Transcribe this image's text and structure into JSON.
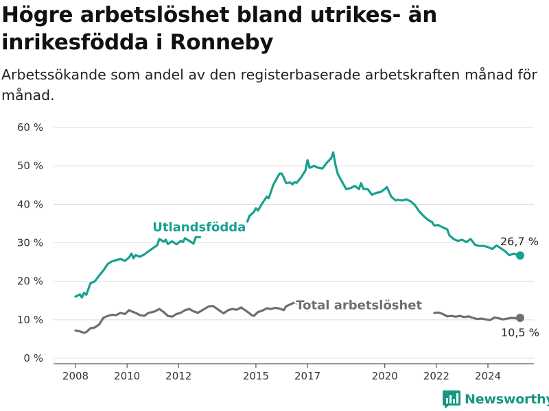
{
  "header": {
    "title": "Högre arbetslöshet bland utrikes- än inrikesfödda i Ronneby",
    "subtitle": "Arbetssökande som andel av den registerbaserade arbetskraften månad för månad."
  },
  "brand": {
    "name": "Newsworthy",
    "color": "#16977f"
  },
  "chart_data": {
    "type": "line",
    "title": "Högre arbetslöshet bland utrikes- än inrikesfödda i Ronneby",
    "subtitle": "Arbetssökande som andel av den registerbaserade arbetskraften månad för månad.",
    "xlabel": "",
    "ylabel": "",
    "x_range": [
      2007.75,
      2025.5
    ],
    "ylim": [
      0,
      60
    ],
    "y_ticks": [
      0,
      10,
      20,
      30,
      40,
      50,
      60
    ],
    "y_tick_labels": [
      "0 %",
      "10 %",
      "20 %",
      "30 %",
      "40 %",
      "50 %",
      "60 %"
    ],
    "x_ticks": [
      2008,
      2010,
      2012,
      2015,
      2017,
      2020,
      2022,
      2024
    ],
    "x_tick_labels": [
      "2008",
      "2010",
      "2012",
      "2015",
      "2017",
      "2020",
      "2022",
      "2024"
    ],
    "grid": "horizontal",
    "legend": "direct-labels",
    "series": [
      {
        "name": "Utlandsfödda",
        "color": "#17a08f",
        "end_label": "26,7 %",
        "points": [
          [
            2008.0,
            16.0
          ],
          [
            2008.17,
            16.6
          ],
          [
            2008.25,
            15.8
          ],
          [
            2008.33,
            17.0
          ],
          [
            2008.42,
            16.5
          ],
          [
            2008.58,
            19.5
          ],
          [
            2008.75,
            20.0
          ],
          [
            2008.92,
            21.5
          ],
          [
            2009.08,
            22.8
          ],
          [
            2009.25,
            24.5
          ],
          [
            2009.42,
            25.2
          ],
          [
            2009.58,
            25.5
          ],
          [
            2009.75,
            25.8
          ],
          [
            2009.92,
            25.3
          ],
          [
            2010.08,
            26.2
          ],
          [
            2010.17,
            27.2
          ],
          [
            2010.25,
            26.0
          ],
          [
            2010.33,
            26.8
          ],
          [
            2010.5,
            26.4
          ],
          [
            2010.67,
            27.0
          ],
          [
            2010.83,
            27.8
          ],
          [
            2011.0,
            28.6
          ],
          [
            2011.17,
            29.4
          ],
          [
            2011.25,
            31.0
          ],
          [
            2011.42,
            30.3
          ],
          [
            2011.5,
            30.8
          ],
          [
            2011.58,
            29.7
          ],
          [
            2011.75,
            30.4
          ],
          [
            2011.92,
            29.6
          ],
          [
            2012.08,
            30.5
          ],
          [
            2012.17,
            30.2
          ],
          [
            2012.25,
            31.2
          ],
          [
            2012.42,
            30.5
          ],
          [
            2012.58,
            29.8
          ],
          [
            2012.67,
            31.5
          ],
          [
            2012.83,
            31.5
          ]
        ],
        "points_2": [
          [
            2014.67,
            35.5
          ],
          [
            2014.75,
            37.0
          ],
          [
            2014.92,
            38.0
          ],
          [
            2015.0,
            39.0
          ],
          [
            2015.08,
            38.4
          ],
          [
            2015.25,
            40.3
          ],
          [
            2015.42,
            42.0
          ],
          [
            2015.5,
            41.6
          ],
          [
            2015.67,
            45.0
          ],
          [
            2015.83,
            47.0
          ],
          [
            2015.92,
            48.0
          ],
          [
            2016.0,
            48.0
          ],
          [
            2016.08,
            47.0
          ],
          [
            2016.17,
            45.5
          ],
          [
            2016.33,
            45.7
          ],
          [
            2016.42,
            45.2
          ],
          [
            2016.5,
            45.8
          ],
          [
            2016.58,
            45.6
          ],
          [
            2016.75,
            47.0
          ],
          [
            2016.92,
            48.8
          ],
          [
            2017.0,
            51.5
          ],
          [
            2017.08,
            49.5
          ],
          [
            2017.25,
            50.0
          ],
          [
            2017.42,
            49.5
          ],
          [
            2017.58,
            49.3
          ],
          [
            2017.75,
            50.8
          ],
          [
            2017.92,
            52.0
          ],
          [
            2018.0,
            53.5
          ],
          [
            2018.08,
            50.5
          ],
          [
            2018.17,
            48.0
          ],
          [
            2018.33,
            46.0
          ],
          [
            2018.5,
            44.0
          ],
          [
            2018.67,
            44.2
          ],
          [
            2018.83,
            44.8
          ],
          [
            2019.0,
            44.0
          ],
          [
            2019.08,
            45.5
          ],
          [
            2019.17,
            44.0
          ],
          [
            2019.33,
            44.0
          ],
          [
            2019.5,
            42.5
          ],
          [
            2019.67,
            43.0
          ],
          [
            2019.83,
            43.2
          ],
          [
            2020.0,
            44.0
          ],
          [
            2020.08,
            44.5
          ],
          [
            2020.25,
            42.0
          ],
          [
            2020.42,
            41.0
          ],
          [
            2020.5,
            41.2
          ],
          [
            2020.67,
            41.0
          ],
          [
            2020.83,
            41.3
          ],
          [
            2021.0,
            40.8
          ],
          [
            2021.17,
            39.8
          ],
          [
            2021.33,
            38.2
          ],
          [
            2021.5,
            37.0
          ],
          [
            2021.67,
            36.0
          ],
          [
            2021.83,
            35.4
          ],
          [
            2021.92,
            34.5
          ],
          [
            2022.08,
            34.6
          ],
          [
            2022.25,
            34.0
          ],
          [
            2022.42,
            33.5
          ],
          [
            2022.5,
            32.0
          ],
          [
            2022.67,
            31.0
          ],
          [
            2022.83,
            30.5
          ],
          [
            2023.0,
            30.8
          ],
          [
            2023.17,
            30.2
          ],
          [
            2023.33,
            31.0
          ],
          [
            2023.5,
            29.5
          ],
          [
            2023.67,
            29.2
          ],
          [
            2023.83,
            29.2
          ],
          [
            2024.0,
            28.9
          ],
          [
            2024.17,
            28.4
          ],
          [
            2024.33,
            29.3
          ],
          [
            2024.5,
            28.6
          ],
          [
            2024.67,
            27.8
          ],
          [
            2024.83,
            26.8
          ],
          [
            2025.0,
            27.2
          ],
          [
            2025.17,
            26.9
          ],
          [
            2025.25,
            26.7
          ]
        ]
      },
      {
        "name": "Total arbetslöshet",
        "color": "#6e6e73",
        "end_label": "10,5 %",
        "points": [
          [
            2008.0,
            7.2
          ],
          [
            2008.17,
            7.0
          ],
          [
            2008.33,
            6.6
          ],
          [
            2008.42,
            6.8
          ],
          [
            2008.58,
            7.8
          ],
          [
            2008.75,
            8.0
          ],
          [
            2008.92,
            8.8
          ],
          [
            2009.08,
            10.5
          ],
          [
            2009.25,
            11.0
          ],
          [
            2009.42,
            11.3
          ],
          [
            2009.58,
            11.2
          ],
          [
            2009.75,
            11.8
          ],
          [
            2009.92,
            11.5
          ],
          [
            2010.08,
            12.5
          ],
          [
            2010.17,
            12.2
          ],
          [
            2010.33,
            11.8
          ],
          [
            2010.5,
            11.2
          ],
          [
            2010.67,
            11.0
          ],
          [
            2010.83,
            11.8
          ],
          [
            2011.0,
            12.0
          ],
          [
            2011.17,
            12.5
          ],
          [
            2011.25,
            12.8
          ],
          [
            2011.42,
            12.0
          ],
          [
            2011.58,
            11.0
          ],
          [
            2011.75,
            10.8
          ],
          [
            2011.92,
            11.5
          ],
          [
            2012.08,
            11.8
          ],
          [
            2012.25,
            12.5
          ],
          [
            2012.42,
            12.8
          ],
          [
            2012.58,
            12.2
          ],
          [
            2012.75,
            11.8
          ],
          [
            2012.92,
            12.5
          ],
          [
            2013.0,
            12.8
          ],
          [
            2013.17,
            13.5
          ],
          [
            2013.33,
            13.6
          ],
          [
            2013.5,
            12.8
          ],
          [
            2013.67,
            12.0
          ],
          [
            2013.75,
            11.7
          ],
          [
            2013.92,
            12.5
          ],
          [
            2014.08,
            12.8
          ],
          [
            2014.25,
            12.6
          ],
          [
            2014.42,
            13.2
          ],
          [
            2014.58,
            12.5
          ],
          [
            2014.75,
            11.7
          ],
          [
            2014.83,
            11.2
          ],
          [
            2014.92,
            11.0
          ],
          [
            2015.08,
            12.0
          ],
          [
            2015.25,
            12.4
          ],
          [
            2015.42,
            13.0
          ],
          [
            2015.58,
            12.8
          ],
          [
            2015.75,
            13.1
          ],
          [
            2015.92,
            12.9
          ],
          [
            2016.08,
            12.5
          ],
          [
            2016.17,
            13.5
          ],
          [
            2016.33,
            14.0
          ],
          [
            2016.5,
            14.5
          ],
          [
            2016.58,
            14.3
          ],
          [
            2016.75,
            13.8
          ],
          [
            2016.92,
            13.6
          ],
          [
            2017.0,
            12.5
          ],
          [
            2017.08,
            12.8
          ]
        ],
        "points_2": [
          [
            2021.92,
            11.8
          ],
          [
            2022.08,
            11.9
          ],
          [
            2022.25,
            11.5
          ],
          [
            2022.42,
            10.9
          ],
          [
            2022.58,
            11.0
          ],
          [
            2022.75,
            10.8
          ],
          [
            2022.92,
            11.0
          ],
          [
            2023.08,
            10.7
          ],
          [
            2023.25,
            10.9
          ],
          [
            2023.42,
            10.5
          ],
          [
            2023.58,
            10.2
          ],
          [
            2023.75,
            10.3
          ],
          [
            2023.92,
            10.1
          ],
          [
            2024.08,
            9.9
          ],
          [
            2024.25,
            10.6
          ],
          [
            2024.42,
            10.4
          ],
          [
            2024.58,
            10.1
          ],
          [
            2024.75,
            10.3
          ],
          [
            2024.92,
            10.5
          ],
          [
            2025.08,
            10.4
          ],
          [
            2025.25,
            10.5
          ]
        ]
      }
    ]
  }
}
